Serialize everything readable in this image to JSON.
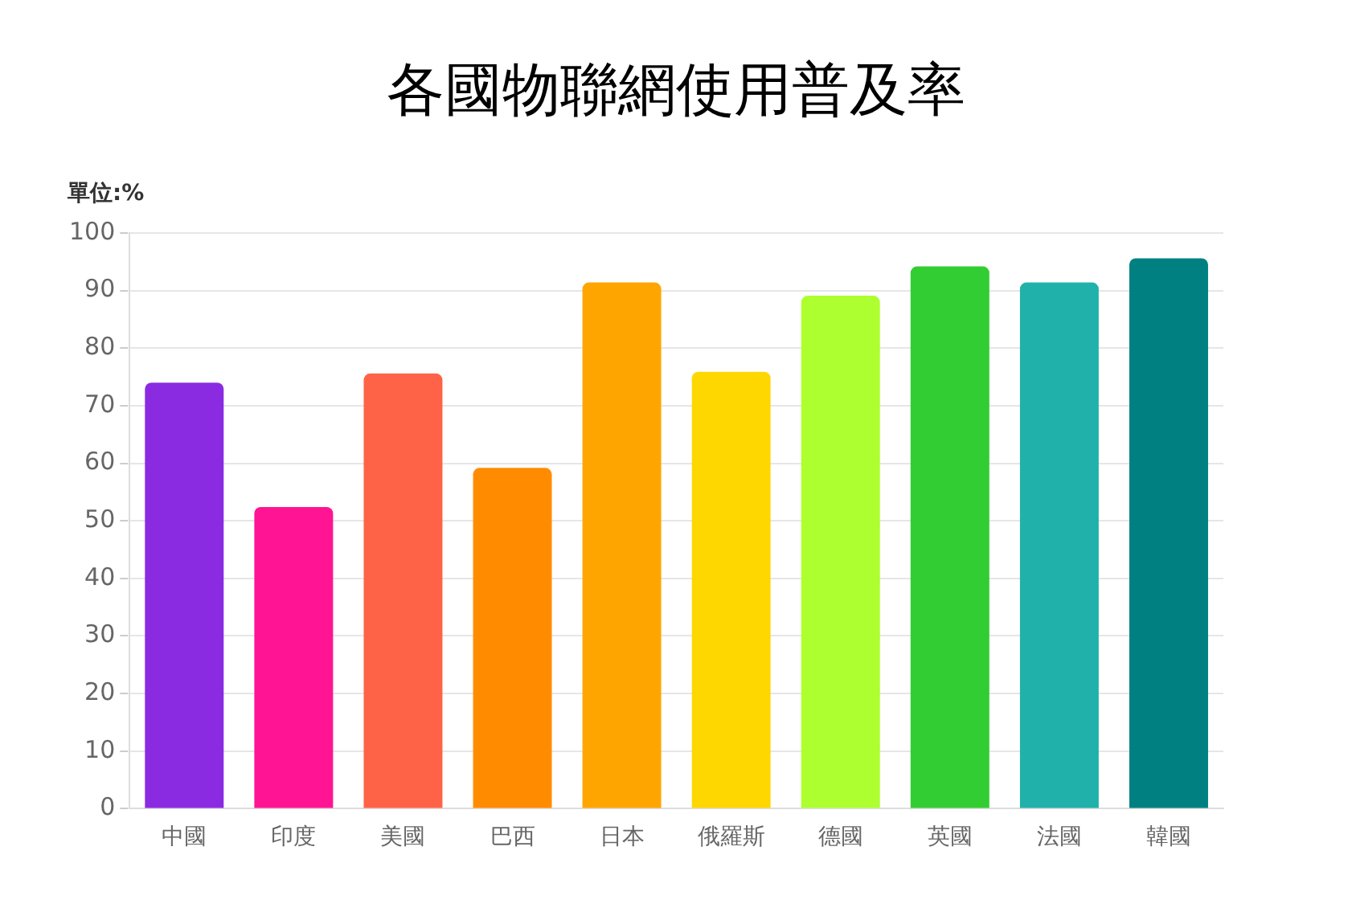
{
  "chart_data": {
    "type": "bar",
    "title": "各國物聯網使用普及率",
    "ylabel": "單位:%",
    "categories": [
      "中國",
      "印度",
      "美國",
      "巴西",
      "日本",
      "俄羅斯",
      "德國",
      "英國",
      "法國",
      "韓國"
    ],
    "values": [
      74,
      52.4,
      75.6,
      59.2,
      91.4,
      75.9,
      89.1,
      94.2,
      91.4,
      95.6
    ],
    "colors": [
      "#8a2be2",
      "#ff1493",
      "#ff6347",
      "#ff8c00",
      "#ffa500",
      "#ffd700",
      "#adff2f",
      "#32cd32",
      "#20b2aa",
      "#008080"
    ],
    "ylim": [
      0,
      100
    ],
    "yticks": [
      0,
      10,
      20,
      30,
      40,
      50,
      60,
      70,
      80,
      90,
      100
    ],
    "grid": "y",
    "legend": false
  }
}
